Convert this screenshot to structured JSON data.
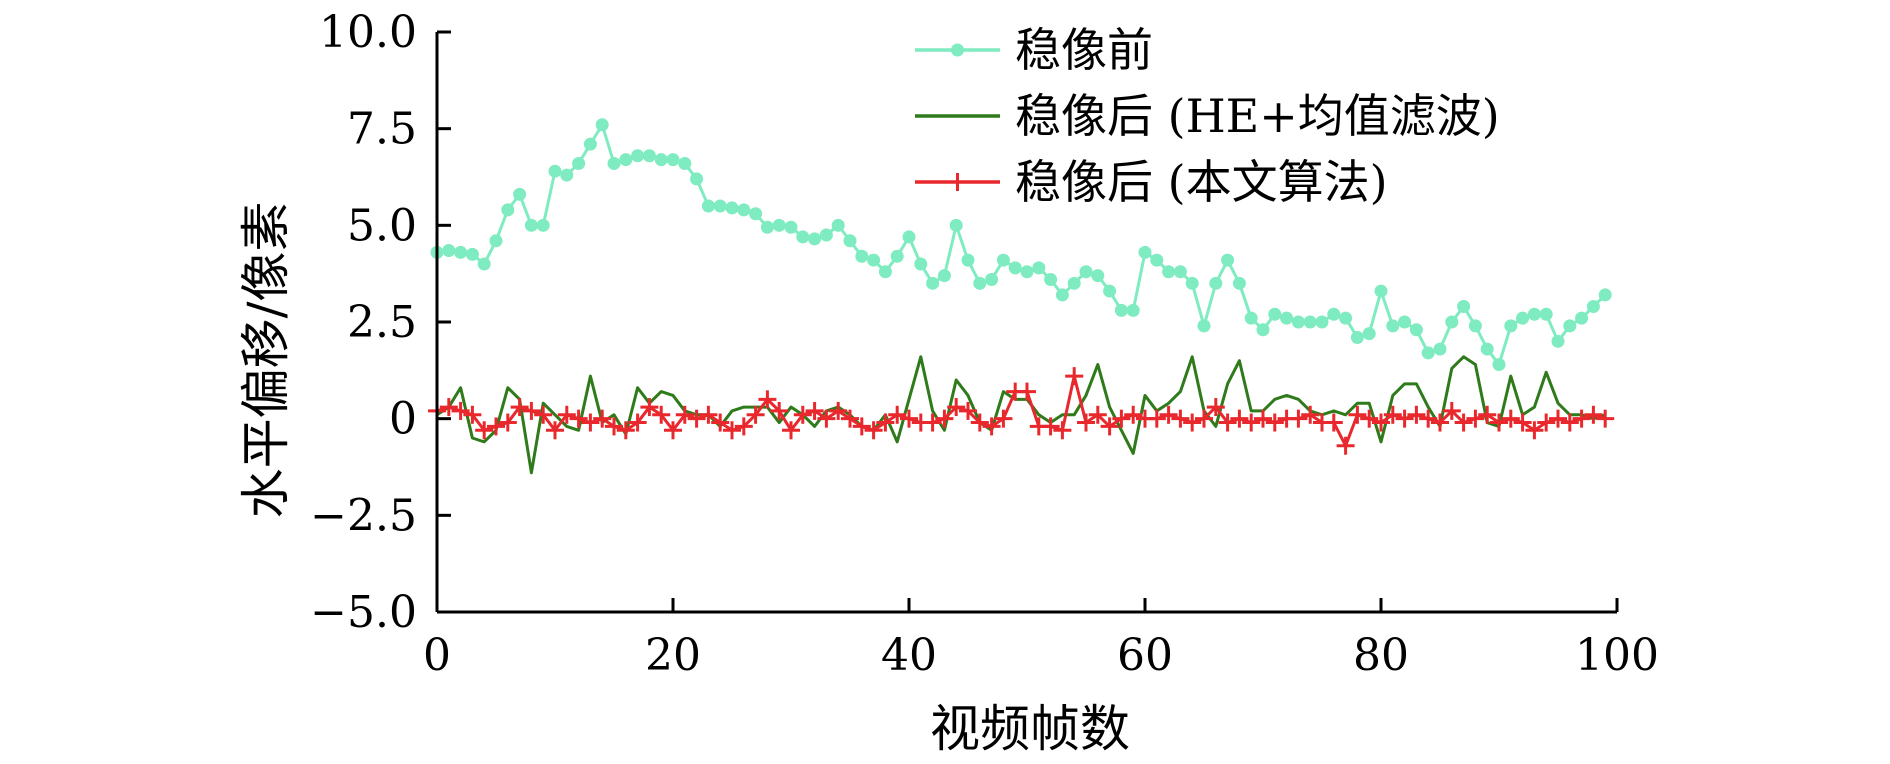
{
  "chart_data": {
    "type": "line",
    "xlabel": "视频帧数",
    "ylabel": "水平偏移/像素",
    "xlim": [
      0,
      100
    ],
    "ylim": [
      -5.0,
      10.0
    ],
    "x_ticks": [
      0,
      20,
      40,
      60,
      80,
      100
    ],
    "y_ticks": [
      -5.0,
      -2.5,
      0,
      2.5,
      5.0,
      7.5,
      10.0
    ],
    "x_tick_labels": [
      "0",
      "20",
      "40",
      "60",
      "80",
      "100"
    ],
    "y_tick_labels": [
      "−5.0",
      "−2.5",
      "0",
      "2.5",
      "5.0",
      "7.5",
      "10.0"
    ],
    "grid": false,
    "legend_position": "top-center",
    "x": [
      0,
      1,
      2,
      3,
      4,
      5,
      6,
      7,
      8,
      9,
      10,
      11,
      12,
      13,
      14,
      15,
      16,
      17,
      18,
      19,
      20,
      21,
      22,
      23,
      24,
      25,
      26,
      27,
      28,
      29,
      30,
      31,
      32,
      33,
      34,
      35,
      36,
      37,
      38,
      39,
      40,
      41,
      42,
      43,
      44,
      45,
      46,
      47,
      48,
      49,
      50,
      51,
      52,
      53,
      54,
      55,
      56,
      57,
      58,
      59,
      60,
      61,
      62,
      63,
      64,
      65,
      66,
      67,
      68,
      69,
      70,
      71,
      72,
      73,
      74,
      75,
      76,
      77,
      78,
      79,
      80,
      81,
      82,
      83,
      84,
      85,
      86,
      87,
      88,
      89,
      90,
      91,
      92,
      93,
      94,
      95,
      96,
      97,
      98,
      99
    ],
    "series": [
      {
        "name": "稳像前",
        "color": "#7eecc0",
        "marker": "circle",
        "values": [
          4.3,
          4.35,
          4.3,
          4.25,
          4.0,
          4.6,
          5.4,
          5.8,
          5.0,
          5.0,
          6.4,
          6.3,
          6.6,
          7.1,
          7.6,
          6.6,
          6.7,
          6.8,
          6.8,
          6.7,
          6.7,
          6.6,
          6.2,
          5.5,
          5.5,
          5.45,
          5.4,
          5.3,
          4.95,
          5.0,
          4.95,
          4.7,
          4.65,
          4.75,
          5.0,
          4.6,
          4.2,
          4.1,
          3.8,
          4.2,
          4.7,
          4.0,
          3.5,
          3.7,
          5.0,
          4.1,
          3.5,
          3.6,
          4.1,
          3.9,
          3.8,
          3.9,
          3.6,
          3.2,
          3.5,
          3.8,
          3.7,
          3.3,
          2.8,
          2.8,
          4.3,
          4.1,
          3.8,
          3.8,
          3.5,
          2.4,
          3.5,
          4.1,
          3.5,
          2.6,
          2.3,
          2.7,
          2.6,
          2.5,
          2.5,
          2.5,
          2.7,
          2.6,
          2.1,
          2.2,
          3.3,
          2.4,
          2.5,
          2.3,
          1.7,
          1.8,
          2.5,
          2.9,
          2.4,
          1.8,
          1.4,
          2.4,
          2.6,
          2.7,
          2.7,
          2.0,
          2.4,
          2.6,
          2.9,
          3.2
        ]
      },
      {
        "name": "稳像后 (HE+均值滤波)",
        "color": "#2f7a1a",
        "marker": "none",
        "values": [
          0.1,
          0.3,
          0.8,
          -0.5,
          -0.6,
          -0.3,
          0.8,
          0.5,
          -1.4,
          0.4,
          0.1,
          -0.2,
          -0.3,
          1.1,
          -0.1,
          0.1,
          -0.4,
          0.8,
          0.4,
          0.7,
          0.6,
          0.2,
          0.1,
          0.1,
          -0.2,
          0.2,
          0.3,
          0.3,
          0.3,
          -0.1,
          0.3,
          0.1,
          -0.2,
          0.2,
          0.3,
          0.1,
          -0.2,
          -0.3,
          0.1,
          -0.6,
          0.5,
          1.6,
          0.2,
          -0.3,
          1.0,
          0.6,
          -0.1,
          -0.3,
          0.7,
          0.5,
          0.5,
          0.1,
          -0.1,
          0.1,
          0.1,
          0.6,
          1.4,
          0.3,
          -0.3,
          -0.9,
          0.6,
          0.2,
          0.4,
          0.7,
          1.6,
          0.2,
          -0.2,
          0.9,
          1.5,
          0.2,
          0.2,
          0.5,
          0.6,
          0.5,
          0.2,
          0.1,
          0.2,
          0.1,
          0.4,
          0.4,
          -0.6,
          0.6,
          0.9,
          0.9,
          0.3,
          -0.2,
          1.3,
          1.6,
          1.4,
          -0.1,
          -0.2,
          1.1,
          0.1,
          0.3,
          1.2,
          0.4,
          0.1,
          0.1,
          0.0,
          0.1
        ]
      },
      {
        "name": "稳像后 (本文算法)",
        "color": "#e8282d",
        "marker": "plus",
        "values": [
          0.2,
          0.3,
          0.2,
          0.1,
          -0.3,
          -0.2,
          -0.1,
          0.3,
          0.2,
          0.1,
          -0.3,
          0.1,
          0.0,
          -0.1,
          0.0,
          -0.2,
          -0.3,
          -0.1,
          0.3,
          0.1,
          -0.3,
          0.1,
          0.0,
          0.1,
          -0.1,
          -0.3,
          -0.2,
          0.1,
          0.5,
          0.2,
          -0.3,
          0.1,
          0.2,
          0.0,
          0.2,
          0.0,
          -0.2,
          -0.3,
          -0.1,
          0.1,
          0.0,
          -0.1,
          -0.1,
          0.0,
          0.3,
          0.2,
          -0.1,
          -0.2,
          0.0,
          0.7,
          0.7,
          -0.2,
          -0.2,
          -0.3,
          1.1,
          -0.1,
          0.1,
          -0.2,
          0.0,
          0.1,
          0.0,
          0.0,
          0.1,
          0.0,
          -0.1,
          0.0,
          0.3,
          -0.1,
          0.0,
          -0.1,
          0.0,
          -0.1,
          0.0,
          0.0,
          0.1,
          -0.1,
          -0.1,
          -0.7,
          0.1,
          0.0,
          -0.1,
          0.1,
          0.0,
          0.1,
          0.0,
          -0.1,
          0.2,
          -0.1,
          0.0,
          0.1,
          -0.1,
          0.0,
          -0.1,
          -0.3,
          -0.1,
          0.0,
          -0.1,
          0.0,
          0.1,
          0.0
        ]
      }
    ]
  }
}
